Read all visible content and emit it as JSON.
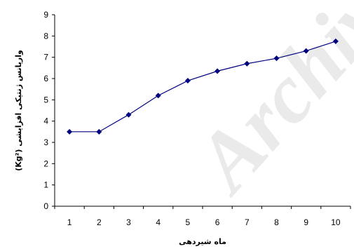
{
  "watermark": "Archive",
  "chart_data": {
    "type": "line",
    "title": "",
    "xlabel": "ماه شیردهی",
    "ylabel": "واریانس ژنتیکی افزایشی (Kg²)",
    "x": [
      1,
      2,
      3,
      4,
      5,
      6,
      7,
      8,
      9,
      10
    ],
    "series": [
      {
        "values": [
          3.5,
          3.5,
          4.3,
          5.2,
          5.9,
          6.35,
          6.7,
          6.95,
          7.3,
          7.75
        ],
        "color": "#00007f"
      }
    ],
    "xlim": [
      0.5,
      10.5
    ],
    "ylim": [
      0,
      9
    ],
    "yticks": [
      0,
      1,
      2,
      3,
      4,
      5,
      6,
      7,
      8,
      9
    ],
    "xticks": [
      1,
      2,
      3,
      4,
      5,
      6,
      7,
      8,
      9,
      10
    ],
    "grid": false,
    "legend": "none"
  }
}
